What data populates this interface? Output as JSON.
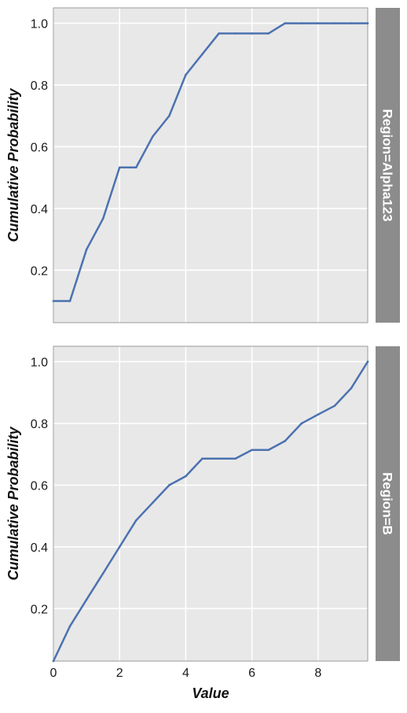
{
  "chart_data": {
    "type": "line",
    "xlabel": "Value",
    "ylabel": "Cumulative Probability",
    "xlim": [
      0,
      9.5
    ],
    "x_ticks": [
      0,
      2,
      4,
      6,
      8
    ],
    "y_ticks": [
      0.2,
      0.4,
      0.6,
      0.8,
      1.0
    ],
    "y_tick_labels": [
      "0.2",
      "0.4",
      "0.6",
      "0.8",
      "1.0"
    ],
    "grid": true,
    "line_color": "#4c72b0",
    "panel_bg": "#e8e8e8",
    "strip_bg": "#8c8c8c",
    "panels": [
      {
        "strip_label": "Region=Alpha123",
        "ylim": [
          0.03,
          1.05
        ],
        "series": [
          {
            "x": [
              0,
              0.5,
              1.0,
              1.5,
              2.0,
              2.5,
              3.0,
              3.5,
              4.0,
              4.5,
              5.0,
              5.5,
              6.0,
              6.5,
              7.0,
              7.5,
              8.0,
              8.5,
              9.0,
              9.5
            ],
            "y": [
              0.1,
              0.1,
              0.267,
              0.367,
              0.533,
              0.533,
              0.633,
              0.7,
              0.833,
              0.9,
              0.967,
              0.967,
              0.967,
              0.967,
              1.0,
              1.0,
              1.0,
              1.0,
              1.0,
              1.0
            ]
          }
        ]
      },
      {
        "strip_label": "Region=B",
        "ylim": [
          0.03,
          1.05
        ],
        "series": [
          {
            "x": [
              0,
              0.5,
              1.0,
              1.5,
              2.0,
              2.5,
              3.0,
              3.5,
              4.0,
              4.5,
              5.0,
              5.5,
              6.0,
              6.5,
              7.0,
              7.5,
              8.0,
              8.5,
              9.0,
              9.5
            ],
            "y": [
              0.03,
              0.143,
              0.229,
              0.314,
              0.4,
              0.486,
              0.543,
              0.6,
              0.629,
              0.686,
              0.686,
              0.686,
              0.714,
              0.714,
              0.743,
              0.8,
              0.829,
              0.857,
              0.914,
              1.0
            ]
          }
        ]
      }
    ]
  }
}
